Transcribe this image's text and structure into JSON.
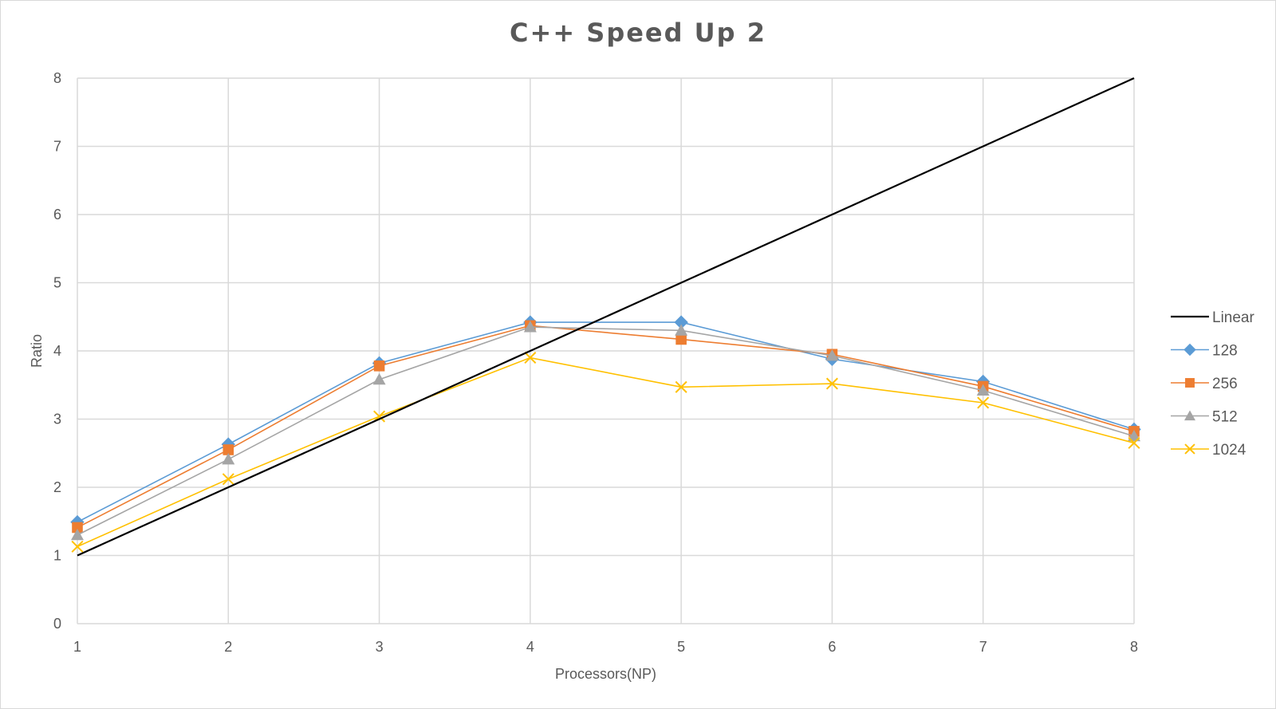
{
  "chart_data": {
    "type": "line",
    "title": "C++ Speed Up 2",
    "xlabel": "Processors(NP)",
    "ylabel": "Ratio",
    "x": [
      1,
      2,
      3,
      4,
      5,
      6,
      7,
      8
    ],
    "xlim": [
      1,
      8
    ],
    "ylim": [
      0,
      8
    ],
    "yticks": [
      0,
      1,
      2,
      3,
      4,
      5,
      6,
      7,
      8
    ],
    "grid": true,
    "legend_position": "right",
    "series": [
      {
        "name": "Linear",
        "values": [
          1,
          2,
          3,
          4,
          5,
          6,
          7,
          8
        ],
        "color": "#000000",
        "marker": "none"
      },
      {
        "name": "128",
        "values": [
          1.49,
          2.63,
          3.82,
          4.42,
          4.42,
          3.88,
          3.55,
          2.85
        ],
        "color": "#5B9BD5",
        "marker": "diamond"
      },
      {
        "name": "256",
        "values": [
          1.41,
          2.55,
          3.78,
          4.37,
          4.17,
          3.95,
          3.48,
          2.82
        ],
        "color": "#ED7D31",
        "marker": "square"
      },
      {
        "name": "512",
        "values": [
          1.3,
          2.41,
          3.58,
          4.35,
          4.3,
          3.93,
          3.42,
          2.75
        ],
        "color": "#A5A5A5",
        "marker": "triangle"
      },
      {
        "name": "1024",
        "values": [
          1.13,
          2.12,
          3.04,
          3.9,
          3.47,
          3.52,
          3.24,
          2.65
        ],
        "color": "#FFC000",
        "marker": "x"
      }
    ]
  }
}
